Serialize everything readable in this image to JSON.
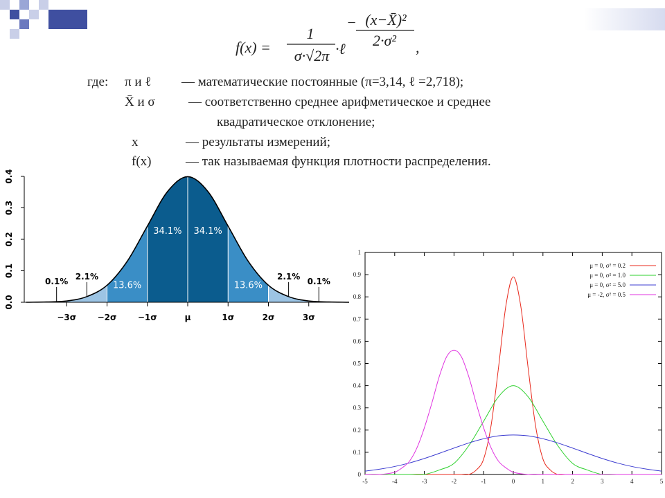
{
  "formula": {
    "lhs": "f(x) =",
    "numerator": "1",
    "denominator": "σ·√2π",
    "base": "·ℓ",
    "exp_sign": "−",
    "exp_numerator": "(x−X̄)²",
    "exp_denominator": "2·σ²",
    "tail": ","
  },
  "definitions": {
    "intro": "где:",
    "rows": [
      {
        "term": "π и ℓ",
        "lines": [
          "— математические постоянные (π=3,14,  ℓ =2,718);"
        ]
      },
      {
        "term": "X̄ и σ",
        "lines": [
          "—  соответственно среднее арифметическое и среднее",
          "квадратическое отклонение;"
        ]
      },
      {
        "term": "x",
        "lines": [
          "—  результаты измерений;"
        ]
      },
      {
        "term": "f(x)",
        "lines": [
          "—  так называемая функция плотности распределения."
        ]
      }
    ]
  },
  "chart_data": [
    {
      "type": "area",
      "x": [
        -4,
        -3.5,
        -3,
        -2.5,
        -2,
        -1.5,
        -1,
        -0.5,
        0,
        0.5,
        1,
        1.5,
        2,
        2.5,
        3,
        3.5,
        4
      ],
      "values": [
        0,
        0.001,
        0.004,
        0.018,
        0.054,
        0.13,
        0.242,
        0.352,
        0.399,
        0.352,
        0.242,
        0.13,
        0.054,
        0.018,
        0.004,
        0.001,
        0
      ],
      "color": "#000000",
      "xlim": [
        -4,
        4
      ],
      "ylim": [
        0,
        0.4
      ],
      "xticks": [
        {
          "value": -3,
          "label": "−3σ"
        },
        {
          "value": -2,
          "label": "−2σ"
        },
        {
          "value": -1,
          "label": "−1σ"
        },
        {
          "value": 0,
          "label": "μ"
        },
        {
          "value": 1,
          "label": "1σ"
        },
        {
          "value": 2,
          "label": "2σ"
        },
        {
          "value": 3,
          "label": "3σ"
        }
      ],
      "yticks": [
        {
          "value": 0,
          "label": "0.0"
        },
        0.1,
        0.2,
        0.3,
        0.4
      ],
      "bands": [
        {
          "to": -3,
          "value": 0.1,
          "value_label": "0.1%",
          "color": "#cfe2f1"
        },
        {
          "from": -3,
          "to": -2,
          "value": 2.1,
          "value_label": "2.1%",
          "color": "#9cc4e4"
        },
        {
          "from": -2,
          "to": -1,
          "value": 13.6,
          "value_label": "13.6%",
          "color": "#3a8ec6"
        },
        {
          "from": -1,
          "to": 0,
          "value": 34.1,
          "value_label": "34.1%",
          "color": "#0b5c8e"
        },
        {
          "from": 0,
          "to": 1,
          "value": 34.1,
          "value_label": "34.1%",
          "color": "#0b5c8e"
        },
        {
          "from": 1,
          "to": 2,
          "value": 13.6,
          "value_label": "13.6%",
          "color": "#3a8ec6"
        },
        {
          "from": 2,
          "to": 3,
          "value": 2.1,
          "value_label": "2.1%",
          "color": "#9cc4e4"
        },
        {
          "from": 3,
          "value": 0.1,
          "value_label": "0.1%",
          "color": "#cfe2f1"
        }
      ]
    },
    {
      "type": "line",
      "xlim": [
        -5,
        5
      ],
      "ylim": [
        0,
        1
      ],
      "xticks": [
        -5,
        -4,
        -3,
        -2,
        -1,
        0,
        1,
        2,
        3,
        4,
        5
      ],
      "yticks": [
        0,
        0.1,
        0.2,
        0.3,
        0.4,
        0.5,
        0.6,
        0.7,
        0.8,
        0.9,
        1
      ],
      "legend": "upper-right",
      "series": [
        {
          "name": "μ = 0, σ² = 0.2",
          "color": "#e8291c",
          "x": [
            -5,
            -2,
            -1.75,
            -1.5,
            -1.25,
            -1,
            -0.75,
            -0.5,
            -0.25,
            0,
            0.25,
            0.5,
            0.75,
            1,
            1.25,
            1.5,
            1.75,
            2,
            5
          ],
          "values": [
            0,
            0,
            0,
            0,
            0.02,
            0.07,
            0.22,
            0.48,
            0.76,
            0.89,
            0.76,
            0.48,
            0.22,
            0.07,
            0.02,
            0,
            0,
            0,
            0
          ]
        },
        {
          "name": "μ = 0, σ² = 1.0",
          "color": "#2ed12e",
          "x": [
            -5,
            -4.5,
            -4,
            -3.5,
            -3,
            -2.5,
            -2,
            -1.5,
            -1,
            -0.5,
            0,
            0.5,
            1,
            1.5,
            2,
            2.5,
            3,
            3.5,
            4,
            4.5,
            5
          ],
          "values": [
            0,
            0,
            0,
            0,
            0,
            0.02,
            0.05,
            0.13,
            0.24,
            0.35,
            0.4,
            0.35,
            0.24,
            0.13,
            0.05,
            0.02,
            0,
            0,
            0,
            0,
            0
          ]
        },
        {
          "name": "μ = 0, σ² = 5.0",
          "color": "#3b3bd0",
          "x": [
            -5,
            -4.5,
            -4,
            -3.5,
            -3,
            -2.5,
            -2,
            -1.5,
            -1,
            -0.5,
            0,
            0.5,
            1,
            1.5,
            2,
            2.5,
            3,
            3.5,
            4,
            4.5,
            5
          ],
          "values": [
            0.015,
            0.024,
            0.036,
            0.052,
            0.072,
            0.095,
            0.119,
            0.142,
            0.161,
            0.174,
            0.178,
            0.174,
            0.161,
            0.142,
            0.119,
            0.095,
            0.072,
            0.052,
            0.036,
            0.024,
            0.015
          ]
        },
        {
          "name": "μ = -2, σ² = 0.5",
          "color": "#e033e0",
          "x": [
            -5,
            -4.5,
            -4,
            -3.75,
            -3.5,
            -3.25,
            -3,
            -2.75,
            -2.5,
            -2.25,
            -2,
            -1.75,
            -1.5,
            -1.25,
            -1,
            -0.75,
            -0.5,
            -0.25,
            0,
            0.5,
            1,
            5
          ],
          "values": [
            0,
            0,
            0.01,
            0.03,
            0.06,
            0.12,
            0.21,
            0.32,
            0.44,
            0.53,
            0.56,
            0.53,
            0.44,
            0.32,
            0.21,
            0.12,
            0.06,
            0.03,
            0.01,
            0,
            0,
            0
          ]
        }
      ]
    }
  ]
}
